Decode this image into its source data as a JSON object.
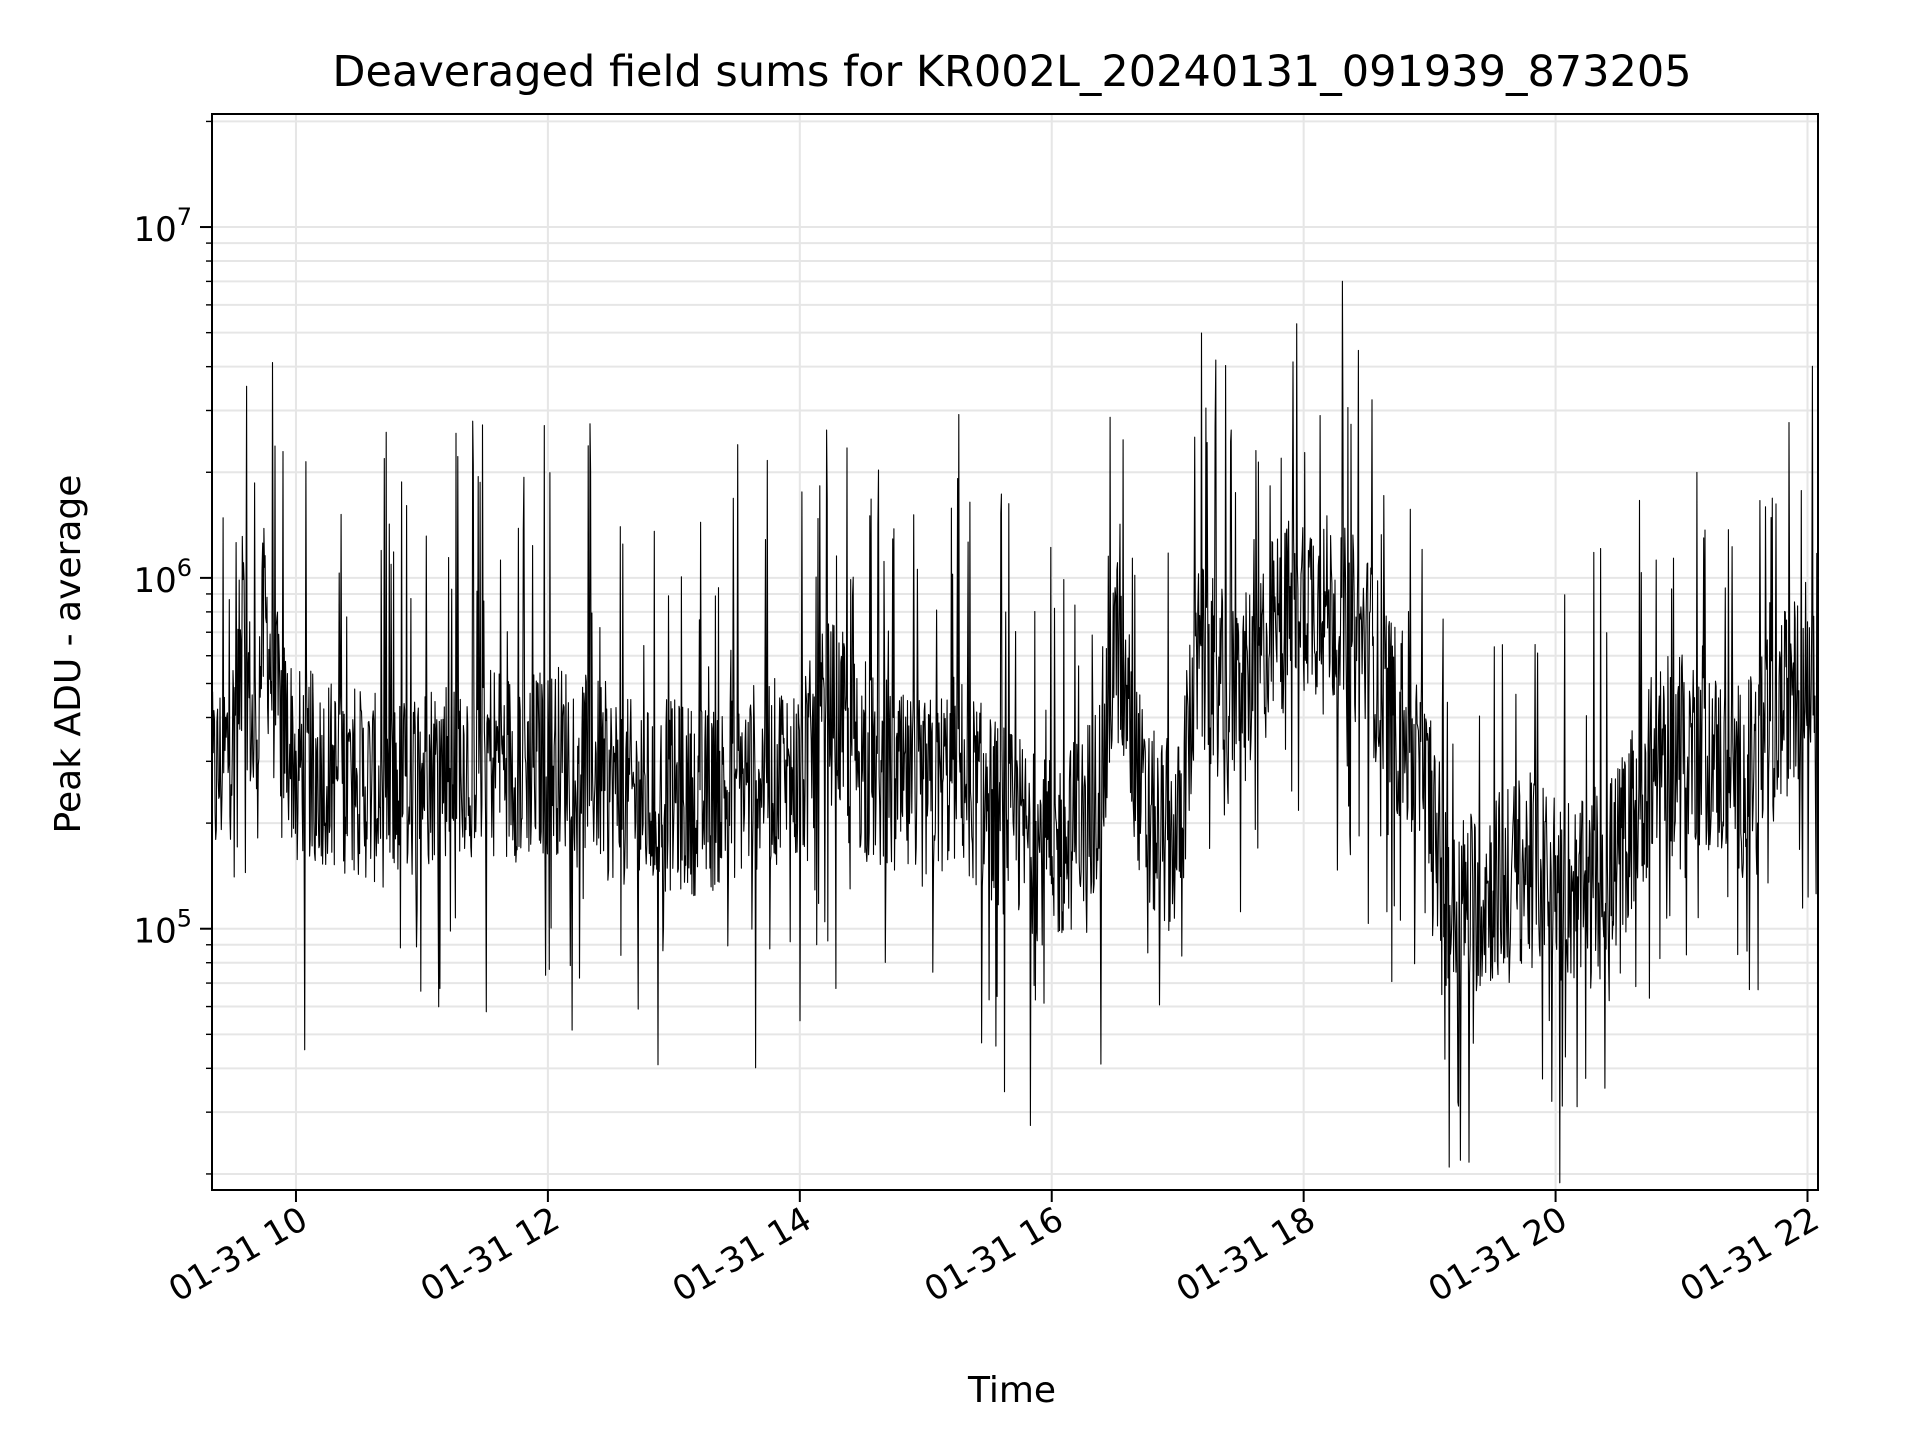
{
  "chart_data": {
    "type": "line",
    "title": "Deaveraged field sums for KR002L_20240131_091939_873205",
    "xlabel": "Time",
    "ylabel": "Peak ADU - average",
    "yscale": "log",
    "ylim": [
      18000,
      21000000
    ],
    "xlim": [
      "01-31 09:20",
      "01-31 22:05"
    ],
    "grid": true,
    "line_color": "#000000",
    "grid_color": "#e6e6e6",
    "x_ticks": [
      {
        "t": "01-31 10:00",
        "label": "01-31 10"
      },
      {
        "t": "01-31 12:00",
        "label": "01-31 12"
      },
      {
        "t": "01-31 14:00",
        "label": "01-31 14"
      },
      {
        "t": "01-31 16:00",
        "label": "01-31 16"
      },
      {
        "t": "01-31 18:00",
        "label": "01-31 18"
      },
      {
        "t": "01-31 20:00",
        "label": "01-31 20"
      },
      {
        "t": "01-31 22:00",
        "label": "01-31 22"
      }
    ],
    "y_ticks": [
      {
        "value": 100000,
        "base": "10",
        "exp": "5"
      },
      {
        "value": 1000000,
        "base": "10",
        "exp": "6"
      },
      {
        "value": 10000000,
        "base": "10",
        "exp": "7"
      }
    ],
    "series": [
      {
        "x": [
          "01-31 09:20",
          "01-31 09:30",
          "01-31 09:35",
          "01-31 09:40",
          "01-31 09:45",
          "01-31 09:50",
          "01-31 10:00",
          "01-31 10:15",
          "01-31 10:30",
          "01-31 10:45",
          "01-31 11:00",
          "01-31 11:15",
          "01-31 11:30",
          "01-31 11:45",
          "01-31 12:00",
          "01-31 12:15",
          "01-31 12:30",
          "01-31 12:45",
          "01-31 13:00",
          "01-31 13:15",
          "01-31 13:30",
          "01-31 13:45",
          "01-31 14:00",
          "01-31 14:15",
          "01-31 14:30",
          "01-31 14:45",
          "01-31 15:00",
          "01-31 15:15",
          "01-31 15:30",
          "01-31 15:45",
          "01-31 16:00",
          "01-31 16:15",
          "01-31 16:25",
          "01-31 16:30",
          "01-31 16:45",
          "01-31 17:00",
          "01-31 17:10",
          "01-31 17:20",
          "01-31 17:30",
          "01-31 17:45",
          "01-31 18:00",
          "01-31 18:15",
          "01-31 18:30",
          "01-31 18:45",
          "01-31 19:00",
          "01-31 19:10",
          "01-31 19:20",
          "01-31 19:30",
          "01-31 19:45",
          "01-31 20:00",
          "01-31 20:15",
          "01-31 20:30",
          "01-31 20:45",
          "01-31 21:00",
          "01-31 21:15",
          "01-31 21:30",
          "01-31 21:45",
          "01-31 22:00",
          "01-31 22:05"
        ],
        "y": [
          250000,
          350000,
          700000,
          320000,
          800000,
          450000,
          300000,
          280000,
          260000,
          240000,
          280000,
          300000,
          330000,
          290000,
          300000,
          320000,
          260000,
          230000,
          240000,
          230000,
          260000,
          280000,
          270000,
          420000,
          300000,
          250000,
          240000,
          290000,
          220000,
          190000,
          160000,
          200000,
          280000,
          700000,
          200000,
          180000,
          600000,
          500000,
          450000,
          700000,
          900000,
          800000,
          650000,
          380000,
          230000,
          110000,
          120000,
          130000,
          150000,
          140000,
          120000,
          160000,
          280000,
          350000,
          300000,
          260000,
          400000,
          550000,
          650000
        ]
      }
    ]
  }
}
